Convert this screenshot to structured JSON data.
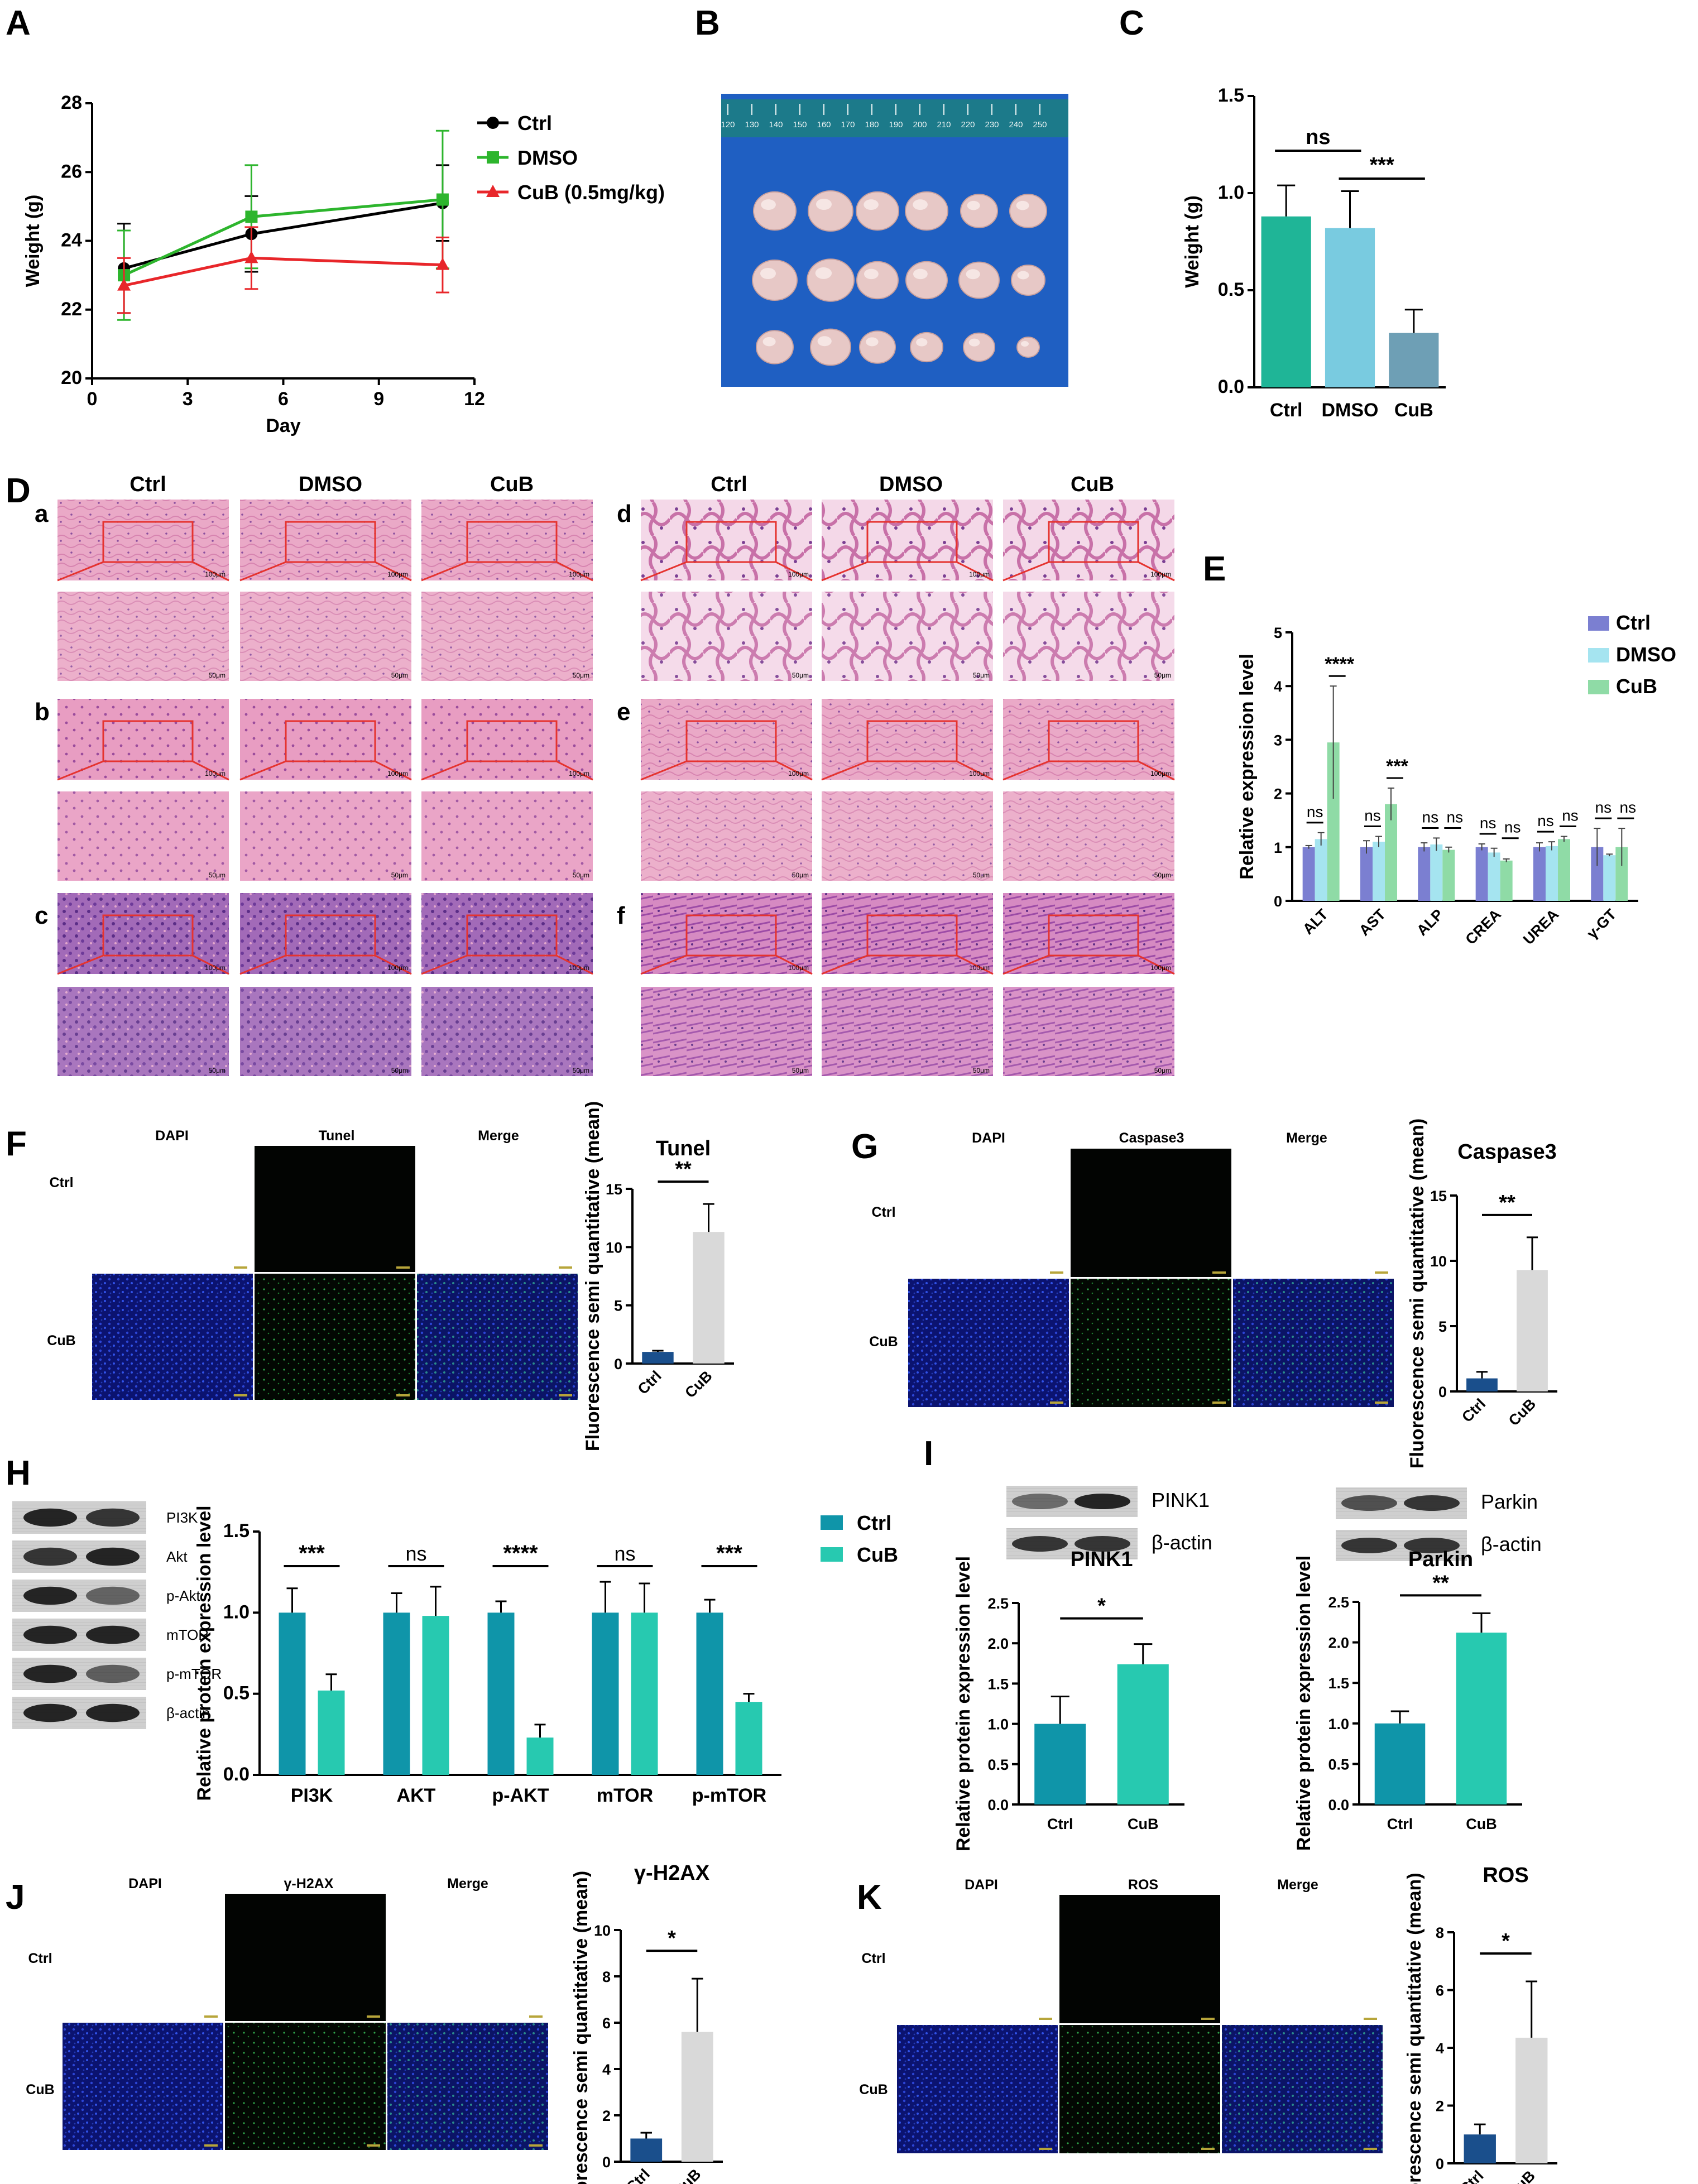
{
  "panel_letters": [
    "A",
    "B",
    "C",
    "D",
    "E",
    "F",
    "G",
    "H",
    "I",
    "J",
    "K"
  ],
  "colors": {
    "ctrl_line": "#000000",
    "dmso_line": "#2db52d",
    "cub_line": "#e8262a",
    "c_ctrl": "#1fb597",
    "c_dmso": "#79cbe0",
    "c_cub": "#6e9fb5",
    "e_ctrl": "#7b7fd1",
    "e_dmso": "#a5e4f0",
    "e_cub": "#8fdba6",
    "h_ctrl": "#0f95a9",
    "h_cub": "#27c9b0",
    "f_ctrl": "#1a4f8c",
    "f_cub": "#d9d9d9",
    "he_pink": "#e9a9c6",
    "fluor_blue": "#1a2f9a",
    "fluor_green": "#1b6e2a"
  },
  "chart_data": [
    {
      "id": "A",
      "type": "line",
      "xlabel": "Day",
      "ylabel": "Weight (g)",
      "xlim": [
        0,
        12
      ],
      "ylim": [
        20,
        28
      ],
      "xticks": [
        "0",
        "3",
        "6",
        "9",
        "12"
      ],
      "yticks": [
        "20",
        "22",
        "24",
        "26",
        "28"
      ],
      "legend_position": "top-right",
      "series": [
        {
          "name": "Ctrl",
          "marker": "circle",
          "x": [
            1,
            5,
            11
          ],
          "y": [
            23.2,
            24.2,
            25.1
          ],
          "err": [
            1.3,
            1.1,
            1.1
          ]
        },
        {
          "name": "DMSO",
          "marker": "square",
          "x": [
            1,
            5,
            11
          ],
          "y": [
            23.0,
            24.7,
            25.2
          ],
          "err": [
            1.3,
            1.5,
            2.0
          ]
        },
        {
          "name": "CuB (0.5mg/kg)",
          "marker": "triangle",
          "x": [
            1,
            5,
            11
          ],
          "y": [
            22.7,
            23.5,
            23.3
          ],
          "err": [
            0.8,
            0.9,
            0.8
          ]
        }
      ]
    },
    {
      "id": "C",
      "type": "bar",
      "ylabel": "Weight (g)",
      "ylim": [
        0,
        1.5
      ],
      "yticks": [
        "0.0",
        "0.5",
        "1.0",
        "1.5"
      ],
      "categories": [
        "Ctrl",
        "DMSO",
        "CuB"
      ],
      "values": [
        0.88,
        0.82,
        0.28
      ],
      "err": [
        0.16,
        0.19,
        0.12
      ],
      "annotations": [
        {
          "text": "ns",
          "from": 0,
          "to": 1
        },
        {
          "text": "***",
          "from": 1,
          "to": 2
        }
      ]
    },
    {
      "id": "E",
      "type": "bar",
      "ylabel": "Relative expression level",
      "ylim": [
        0,
        5
      ],
      "yticks": [
        "0",
        "1",
        "2",
        "3",
        "4",
        "5"
      ],
      "categories": [
        "ALT",
        "AST",
        "ALP",
        "CREA",
        "UREA",
        "γ-GT"
      ],
      "legend_position": "top-right",
      "series": [
        {
          "name": "Ctrl",
          "values": [
            1.0,
            1.0,
            1.0,
            1.0,
            1.0,
            1.0
          ],
          "err": [
            0.03,
            0.12,
            0.08,
            0.06,
            0.08,
            0.35
          ]
        },
        {
          "name": "DMSO",
          "values": [
            1.15,
            1.1,
            1.05,
            0.9,
            1.02,
            0.85
          ],
          "err": [
            0.12,
            0.1,
            0.12,
            0.08,
            0.08,
            0.02
          ]
        },
        {
          "name": "CuB",
          "values": [
            2.95,
            1.8,
            0.95,
            0.75,
            1.15,
            1.0
          ],
          "err": [
            1.05,
            0.3,
            0.05,
            0.03,
            0.05,
            0.35
          ]
        }
      ],
      "annotations": [
        {
          "g": 0,
          "left": "ns",
          "right": "****"
        },
        {
          "g": 1,
          "left": "ns",
          "right": "***"
        },
        {
          "g": 2,
          "left": "ns",
          "right": "ns"
        },
        {
          "g": 3,
          "left": "ns",
          "right": "ns"
        },
        {
          "g": 4,
          "left": "ns",
          "right": "ns"
        },
        {
          "g": 5,
          "left": "ns",
          "right": "ns"
        }
      ]
    },
    {
      "id": "F",
      "type": "bar",
      "title": "Tunel",
      "ylabel": "Fluorescence semi quantitative (mean)",
      "ylim": [
        0,
        15
      ],
      "yticks": [
        "0",
        "5",
        "10",
        "15"
      ],
      "categories": [
        "Ctrl",
        "CuB"
      ],
      "values": [
        1.0,
        11.3
      ],
      "err": [
        0.1,
        2.4
      ],
      "annotations": [
        {
          "text": "**",
          "from": 0,
          "to": 1
        }
      ]
    },
    {
      "id": "G",
      "type": "bar",
      "title": "Caspase3",
      "ylabel": "Fluorescence semi quantitative (mean)",
      "ylim": [
        0,
        15
      ],
      "yticks": [
        "0",
        "5",
        "10",
        "15"
      ],
      "categories": [
        "Ctrl",
        "CuB"
      ],
      "values": [
        1.0,
        9.3
      ],
      "err": [
        0.5,
        2.5
      ],
      "annotations": [
        {
          "text": "**",
          "from": 0,
          "to": 1
        }
      ]
    },
    {
      "id": "H",
      "type": "bar",
      "ylabel": "Relative protein expression level",
      "ylim": [
        0,
        1.5
      ],
      "yticks": [
        "0.0",
        "0.5",
        "1.0",
        "1.5"
      ],
      "categories": [
        "PI3K",
        "AKT",
        "p-AKT",
        "mTOR",
        "p-mTOR"
      ],
      "legend_position": "top-right",
      "series": [
        {
          "name": "Ctrl",
          "values": [
            1.0,
            1.0,
            1.0,
            1.0,
            1.0
          ],
          "err": [
            0.15,
            0.12,
            0.07,
            0.19,
            0.08
          ]
        },
        {
          "name": "CuB",
          "values": [
            0.52,
            0.98,
            0.23,
            1.0,
            0.45
          ],
          "err": [
            0.1,
            0.18,
            0.08,
            0.18,
            0.05
          ]
        }
      ],
      "annotations": [
        "***",
        "ns",
        "****",
        "ns",
        "***"
      ]
    },
    {
      "id": "I-PINK1",
      "type": "bar",
      "title": "PINK1",
      "ylabel": "Relative protein expression level",
      "ylim": [
        0,
        2.5
      ],
      "yticks": [
        "0.0",
        "0.5",
        "1.0",
        "1.5",
        "2.0",
        "2.5"
      ],
      "categories": [
        "Ctrl",
        "CuB"
      ],
      "values": [
        1.0,
        1.74
      ],
      "err": [
        0.34,
        0.25
      ],
      "annotations": [
        {
          "text": "*",
          "from": 0,
          "to": 1
        }
      ]
    },
    {
      "id": "I-Parkin",
      "type": "bar",
      "title": "Parkin",
      "ylabel": "Relative protein expression level",
      "ylim": [
        0,
        2.5
      ],
      "yticks": [
        "0.0",
        "0.5",
        "1.0",
        "1.5",
        "2.0",
        "2.5"
      ],
      "categories": [
        "Ctrl",
        "CuB"
      ],
      "values": [
        1.0,
        2.12
      ],
      "err": [
        0.15,
        0.24
      ],
      "annotations": [
        {
          "text": "**",
          "from": 0,
          "to": 1
        }
      ]
    },
    {
      "id": "J",
      "type": "bar",
      "title": "γ-H2AX",
      "ylabel": "Fluorescence semi quantitative (mean)",
      "ylim": [
        0,
        10
      ],
      "yticks": [
        "0",
        "2",
        "4",
        "6",
        "8",
        "10"
      ],
      "categories": [
        "Ctrl",
        "CuB"
      ],
      "values": [
        1.0,
        5.6
      ],
      "err": [
        0.25,
        2.3
      ],
      "annotations": [
        {
          "text": "*",
          "from": 0,
          "to": 1
        }
      ]
    },
    {
      "id": "K",
      "type": "bar",
      "title": "ROS",
      "ylabel": "Fluorescence semi quantitative (mean)",
      "ylim": [
        0,
        8
      ],
      "yticks": [
        "0",
        "2",
        "4",
        "6",
        "8"
      ],
      "categories": [
        "Ctrl",
        "CuB"
      ],
      "values": [
        1.0,
        4.35
      ],
      "err": [
        0.35,
        1.95
      ],
      "annotations": [
        {
          "text": "*",
          "from": 0,
          "to": 1
        }
      ]
    }
  ],
  "ruler": {
    "marks": [
      "120",
      "130",
      "140",
      "150",
      "160",
      "170",
      "180",
      "190",
      "200",
      "210",
      "220",
      "230",
      "240",
      "250"
    ]
  },
  "he": {
    "left_cols": [
      "Ctrl",
      "DMSO",
      "CuB"
    ],
    "right_cols": [
      "Ctrl",
      "DMSO",
      "CuB"
    ],
    "left_rows": [
      "a",
      "b",
      "c"
    ],
    "right_rows": [
      "d",
      "e",
      "f"
    ],
    "scale_100": "100μm",
    "scale_50": "50μm"
  },
  "fluor": {
    "rows": [
      "Ctrl",
      "CuB"
    ],
    "F": [
      "DAPI",
      "Tunel",
      "Merge"
    ],
    "G": [
      "DAPI",
      "Caspase3",
      "Merge"
    ],
    "J": [
      "DAPI",
      "γ-H2AX",
      "Merge"
    ],
    "K": [
      "DAPI",
      "ROS",
      "Merge"
    ]
  },
  "wb_h": [
    "PI3K",
    "Akt",
    "p-Akt",
    "mTOR",
    "p-mTOR",
    "β-actin"
  ],
  "wb_i": {
    "pink": [
      "PINK1",
      "β-actin"
    ],
    "parkin": [
      "Parkin",
      "β-actin"
    ]
  }
}
